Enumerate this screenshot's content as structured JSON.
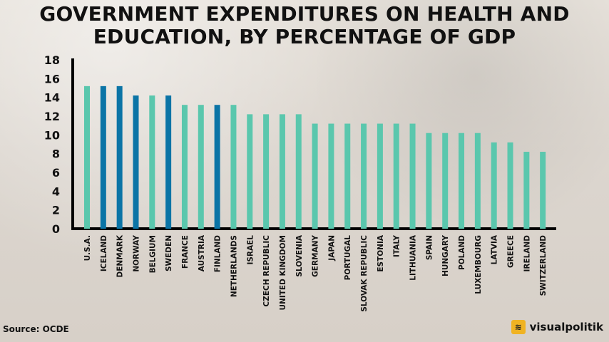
{
  "header": {
    "title_line1": "GOVERNMENT EXPENDITURES ON HEALTH AND",
    "title_line2": "EDUCATION, BY PERCENTAGE OF GDP"
  },
  "footer": {
    "source": "Source: OCDE",
    "brand": "visualpolitik",
    "brand_icon": "visualpolitik-logo-icon"
  },
  "colors": {
    "default_bar": "#5ac7ad",
    "highlight_bar": "#0b74a6",
    "axis": "#000000",
    "text": "#111111"
  },
  "chart_data": {
    "type": "bar",
    "title": "GOVERNMENT EXPENDITURES ON HEALTH AND EDUCATION, BY PERCENTAGE OF GDP",
    "xlabel": "",
    "ylabel": "",
    "ylim": [
      0,
      18
    ],
    "y_ticks": [
      0,
      2,
      4,
      6,
      8,
      10,
      12,
      14,
      16,
      18
    ],
    "categories": [
      "U.S.A.",
      "ICELAND",
      "DENMARK",
      "NORWAY",
      "BELGIUM",
      "SWEDEN",
      "FRANCE",
      "AUSTRIA",
      "FINLAND",
      "NETHERLANDS",
      "ISRAEL",
      "CZECH REPUBLIC",
      "UNITED KINGDOM",
      "SLOVENIA",
      "GERMANY",
      "JAPAN",
      "PORTUGAL",
      "SLOVAK REPUBLIC",
      "ESTONIA",
      "ITALY",
      "LITHUANIA",
      "SPAIN",
      "HUNGARY",
      "POLAND",
      "LUXEMBOURG",
      "LATVIA",
      "GREECE",
      "IRELAND",
      "SWITZERLAND"
    ],
    "values": [
      15.2,
      15.2,
      15.2,
      14.2,
      14.2,
      14.2,
      13.2,
      13.2,
      13.2,
      13.2,
      12.2,
      12.2,
      12.2,
      12.2,
      11.2,
      11.2,
      11.2,
      11.2,
      11.2,
      11.2,
      11.2,
      10.2,
      10.2,
      10.2,
      10.2,
      9.2,
      9.2,
      8.2,
      8.2
    ],
    "highlighted_categories": [
      "ICELAND",
      "DENMARK",
      "NORWAY",
      "SWEDEN",
      "FINLAND"
    ],
    "grid": false,
    "legend": "none"
  }
}
